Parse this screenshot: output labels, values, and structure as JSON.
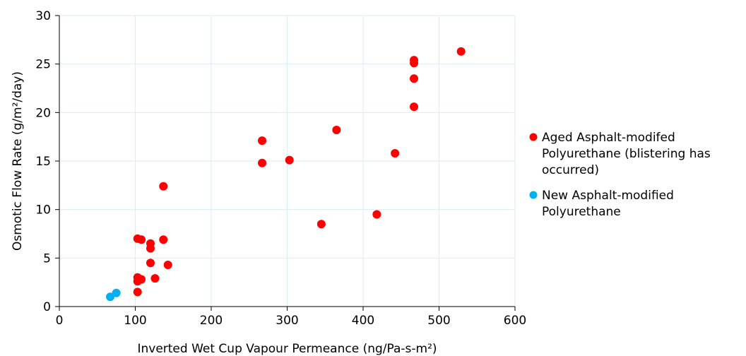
{
  "chart_data": {
    "type": "scatter",
    "xlabel": "Inverted Wet Cup Vapour Permeance (ng/Pa-s-m²)",
    "ylabel": "Osmotic Flow Rate (g/m²/day)",
    "xlim": [
      0,
      600
    ],
    "ylim": [
      0,
      30
    ],
    "x_ticks": [
      0,
      100,
      200,
      300,
      400,
      500,
      600
    ],
    "y_ticks": [
      0,
      5,
      10,
      15,
      20,
      25,
      30
    ],
    "grid": true,
    "legend_position": "right",
    "series": [
      {
        "name": "Aged Asphalt-modifed Polyurethane (blistering has occurred)",
        "legend_lines": [
          "Aged Asphalt-modifed",
          "Polyurethane (blistering has",
          "occurred)"
        ],
        "color": "#ff0000",
        "points": [
          [
            103,
            7.0
          ],
          [
            108,
            6.9
          ],
          [
            120,
            6.5
          ],
          [
            120,
            6.0
          ],
          [
            137,
            6.9
          ],
          [
            120,
            4.5
          ],
          [
            143,
            4.3
          ],
          [
            103,
            3.0
          ],
          [
            108,
            2.8
          ],
          [
            103,
            2.6
          ],
          [
            126,
            2.9
          ],
          [
            103,
            1.5
          ],
          [
            137,
            12.4
          ],
          [
            267,
            17.1
          ],
          [
            267,
            14.8
          ],
          [
            303,
            15.1
          ],
          [
            365,
            18.2
          ],
          [
            345,
            8.5
          ],
          [
            418,
            9.5
          ],
          [
            442,
            15.8
          ],
          [
            467,
            20.6
          ],
          [
            467,
            23.5
          ],
          [
            467,
            25.1
          ],
          [
            467,
            25.4
          ],
          [
            529,
            26.3
          ]
        ]
      },
      {
        "name": "New Asphalt-modified Polyurethane",
        "legend_lines": [
          "New Asphalt-modified",
          "Polyurethane"
        ],
        "color": "#00b0f0",
        "points": [
          [
            67,
            1.0
          ],
          [
            75,
            1.4
          ]
        ]
      }
    ]
  }
}
